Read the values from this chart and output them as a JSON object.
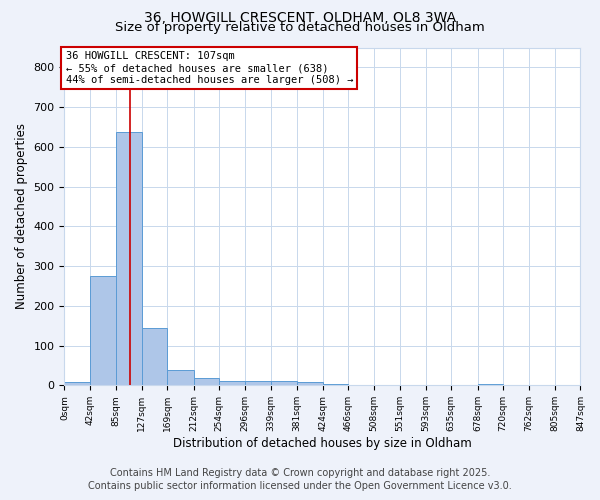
{
  "title": "36, HOWGILL CRESCENT, OLDHAM, OL8 3WA",
  "subtitle": "Size of property relative to detached houses in Oldham",
  "xlabel": "Distribution of detached houses by size in Oldham",
  "ylabel": "Number of detached properties",
  "bar_edges": [
    0,
    42,
    85,
    127,
    169,
    212,
    254,
    296,
    339,
    381,
    424,
    466,
    508,
    551,
    593,
    635,
    678,
    720,
    762,
    805,
    847
  ],
  "bar_heights": [
    8,
    275,
    638,
    144,
    38,
    18,
    12,
    12,
    10,
    8,
    4,
    0,
    0,
    0,
    0,
    0,
    4,
    0,
    0,
    0
  ],
  "bar_color": "#aec6e8",
  "bar_edgecolor": "#5b9bd5",
  "property_size": 107,
  "red_line_color": "#cc0000",
  "annotation_line1": "36 HOWGILL CRESCENT: 107sqm",
  "annotation_line2": "← 55% of detached houses are smaller (638)",
  "annotation_line3": "44% of semi-detached houses are larger (508) →",
  "annotation_box_color": "#ffffff",
  "annotation_box_edgecolor": "#cc0000",
  "ylim": [
    0,
    850
  ],
  "tick_labels": [
    "0sqm",
    "42sqm",
    "85sqm",
    "127sqm",
    "169sqm",
    "212sqm",
    "254sqm",
    "296sqm",
    "339sqm",
    "381sqm",
    "424sqm",
    "466sqm",
    "508sqm",
    "551sqm",
    "593sqm",
    "635sqm",
    "678sqm",
    "720sqm",
    "762sqm",
    "805sqm",
    "847sqm"
  ],
  "footer_line1": "Contains HM Land Registry data © Crown copyright and database right 2025.",
  "footer_line2": "Contains public sector information licensed under the Open Government Licence v3.0.",
  "background_color": "#eef2fa",
  "plot_background": "#ffffff",
  "grid_color": "#c8d8ec",
  "title_fontsize": 10,
  "subtitle_fontsize": 9.5,
  "footer_fontsize": 7,
  "yticks": [
    0,
    100,
    200,
    300,
    400,
    500,
    600,
    700,
    800
  ]
}
